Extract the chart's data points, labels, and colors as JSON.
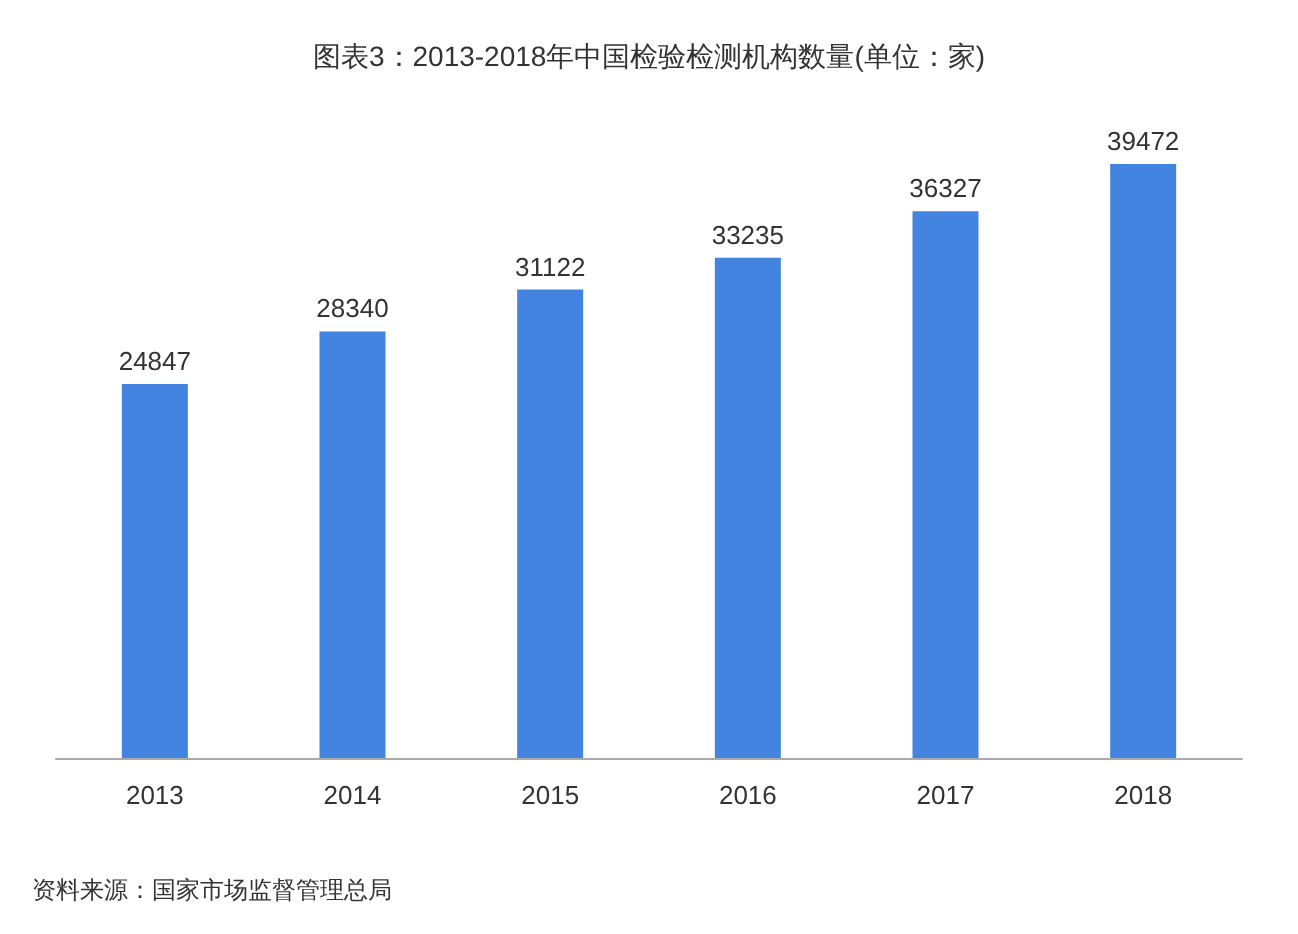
{
  "chart_data": {
    "type": "bar",
    "title": "图表3：2013-2018年中国检验检测机构数量(单位：家)",
    "categories": [
      "2013",
      "2014",
      "2015",
      "2016",
      "2017",
      "2018"
    ],
    "values": [
      24847,
      28340,
      31122,
      33235,
      36327,
      39472
    ],
    "color": "#4384e1",
    "data_labels": true,
    "annotations": [
      "资料来源：国家市场监督管理总局"
    ]
  }
}
